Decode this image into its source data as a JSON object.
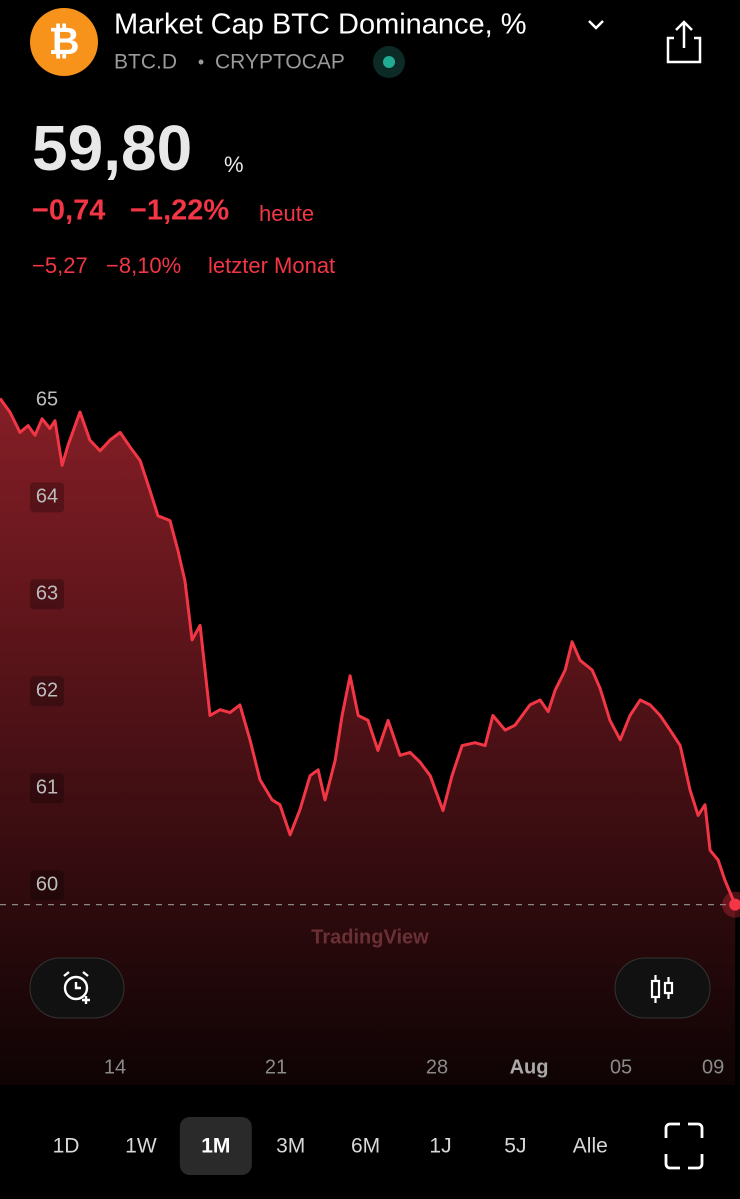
{
  "header": {
    "icon": "₿",
    "title": "Market Cap BTC Dominance, %",
    "symbol": "BTC.D",
    "separator": "•",
    "exchange": "CRYPTOCAP"
  },
  "quote": {
    "price": "59,80",
    "unit": "%",
    "change": "−0,74",
    "change_pct": "−1,22%",
    "change_period": "heute",
    "month_change": "−5,27",
    "month_change_pct": "−8,10%",
    "month_period": "letzter Monat"
  },
  "chart_data": {
    "type": "line",
    "color": "#f23645",
    "watermark": "TradingView",
    "last_value_line": true,
    "x": [
      9.0,
      9.43,
      9.87,
      10.22,
      10.52,
      10.83,
      11.17,
      11.39,
      11.7,
      11.96,
      12.48,
      12.91,
      13.35,
      13.78,
      14.22,
      14.65,
      15.09,
      15.52,
      15.87,
      16.39,
      16.74,
      17.04,
      17.35,
      17.7,
      18.13,
      18.57,
      19.0,
      19.43,
      19.87,
      20.3,
      20.83,
      21.17,
      21.61,
      22.04,
      22.48,
      22.83,
      23.13,
      23.57,
      23.87,
      24.22,
      24.57,
      25.0,
      25.43,
      25.87,
      26.39,
      26.83,
      27.26,
      27.7,
      28.26,
      28.65,
      29.09,
      29.65,
      30.09,
      30.43,
      30.96,
      31.39,
      32.04,
      32.48,
      32.83,
      33.13,
      33.57,
      33.87,
      34.22,
      34.74,
      35.09,
      35.52,
      35.96,
      36.39,
      36.83,
      37.26,
      37.7,
      38.13,
      38.57,
      39.0,
      39.35,
      39.65,
      39.87,
      40.22,
      40.52,
      40.96
    ],
    "values": [
      65.02,
      64.88,
      64.67,
      64.74,
      64.64,
      64.81,
      64.71,
      64.79,
      64.33,
      64.54,
      64.88,
      64.59,
      64.48,
      64.59,
      64.67,
      64.52,
      64.38,
      64.07,
      63.81,
      63.76,
      63.45,
      63.14,
      62.53,
      62.68,
      61.75,
      61.81,
      61.78,
      61.86,
      61.5,
      61.09,
      60.88,
      60.83,
      60.52,
      60.78,
      61.13,
      61.19,
      60.88,
      61.29,
      61.75,
      62.16,
      61.75,
      61.7,
      61.39,
      61.7,
      61.34,
      61.37,
      61.27,
      61.13,
      60.77,
      61.13,
      61.44,
      61.47,
      61.44,
      61.75,
      61.6,
      61.65,
      61.86,
      61.91,
      61.79,
      62.01,
      62.22,
      62.51,
      62.32,
      62.22,
      62.03,
      61.7,
      61.5,
      61.75,
      61.91,
      61.86,
      61.75,
      61.6,
      61.44,
      60.98,
      60.72,
      60.83,
      60.36,
      60.26,
      60.05,
      59.8
    ],
    "xlim": [
      9,
      41.17
    ],
    "ylim": [
      57.94,
      65.21
    ],
    "xticks": [
      14,
      21,
      28,
      {
        "value": 32,
        "label": "Aug"
      },
      {
        "value": 36,
        "label": "05"
      },
      {
        "value": 40,
        "label": "09"
      }
    ],
    "yticks": [
      60,
      61,
      62,
      63,
      64,
      65
    ]
  },
  "timeframes": [
    "1D",
    "1W",
    "1M",
    "3M",
    "6M",
    "1J",
    "5J",
    "Alle"
  ],
  "selected_timeframe": 2
}
